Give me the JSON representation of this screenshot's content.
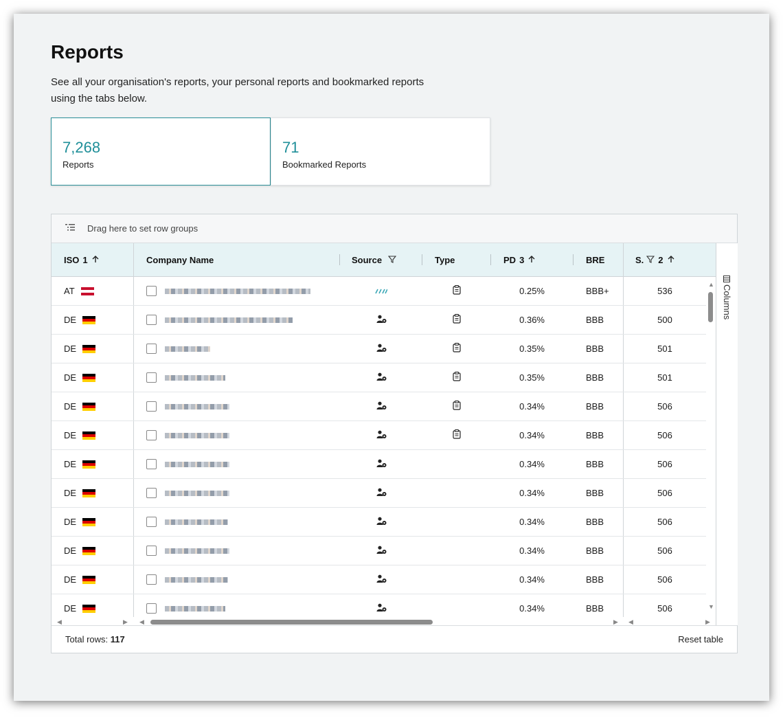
{
  "page": {
    "title": "Reports",
    "description": "See all your organisation's reports, your personal reports and bookmarked reports using the tabs below."
  },
  "stats": [
    {
      "value": "7,268",
      "label": "Reports"
    },
    {
      "value": "71",
      "label": "Bookmarked Reports"
    }
  ],
  "grid": {
    "group_bar_text": "Drag here to set row groups",
    "columns_panel_label": "Columns",
    "headers": {
      "iso": "ISO",
      "iso_sort_index": "1",
      "company": "Company Name",
      "source": "Source",
      "type": "Type",
      "pd": "PD",
      "pd_sort_index": "3",
      "bre": "BRE",
      "score": "S.",
      "score_sort_index": "2"
    },
    "icons": {
      "sort_asc": "arrow-up-icon",
      "filter": "filter-icon",
      "source_api": "api-stripes-icon",
      "source_user": "user-gear-icon",
      "type_report": "clipboard-icon",
      "columns": "columns-icon",
      "row_groups": "row-group-icon"
    },
    "colors": {
      "accent": "#1f8f99",
      "header_bg": "#e6f3f5",
      "api_icon": "#3aa8b6"
    },
    "rows": [
      {
        "iso": "AT",
        "flag": "at",
        "source": "api",
        "type": "report",
        "pd": "0.25%",
        "bre": "BBB+",
        "score": "536"
      },
      {
        "iso": "DE",
        "flag": "de",
        "source": "user",
        "type": "report",
        "pd": "0.36%",
        "bre": "BBB",
        "score": "500"
      },
      {
        "iso": "DE",
        "flag": "de",
        "source": "user",
        "type": "report",
        "pd": "0.35%",
        "bre": "BBB",
        "score": "501"
      },
      {
        "iso": "DE",
        "flag": "de",
        "source": "user",
        "type": "report",
        "pd": "0.35%",
        "bre": "BBB",
        "score": "501"
      },
      {
        "iso": "DE",
        "flag": "de",
        "source": "user",
        "type": "report",
        "pd": "0.34%",
        "bre": "BBB",
        "score": "506"
      },
      {
        "iso": "DE",
        "flag": "de",
        "source": "user",
        "type": "report",
        "pd": "0.34%",
        "bre": "BBB",
        "score": "506"
      },
      {
        "iso": "DE",
        "flag": "de",
        "source": "user",
        "type": "",
        "pd": "0.34%",
        "bre": "BBB",
        "score": "506"
      },
      {
        "iso": "DE",
        "flag": "de",
        "source": "user",
        "type": "",
        "pd": "0.34%",
        "bre": "BBB",
        "score": "506"
      },
      {
        "iso": "DE",
        "flag": "de",
        "source": "user",
        "type": "",
        "pd": "0.34%",
        "bre": "BBB",
        "score": "506"
      },
      {
        "iso": "DE",
        "flag": "de",
        "source": "user",
        "type": "",
        "pd": "0.34%",
        "bre": "BBB",
        "score": "506"
      },
      {
        "iso": "DE",
        "flag": "de",
        "source": "user",
        "type": "",
        "pd": "0.34%",
        "bre": "BBB",
        "score": "506"
      },
      {
        "iso": "DE",
        "flag": "de",
        "source": "user",
        "type": "",
        "pd": "0.34%",
        "bre": "BBB",
        "score": "506"
      }
    ],
    "footer": {
      "total_label": "Total rows:",
      "total_value": "117",
      "reset_label": "Reset table"
    }
  }
}
